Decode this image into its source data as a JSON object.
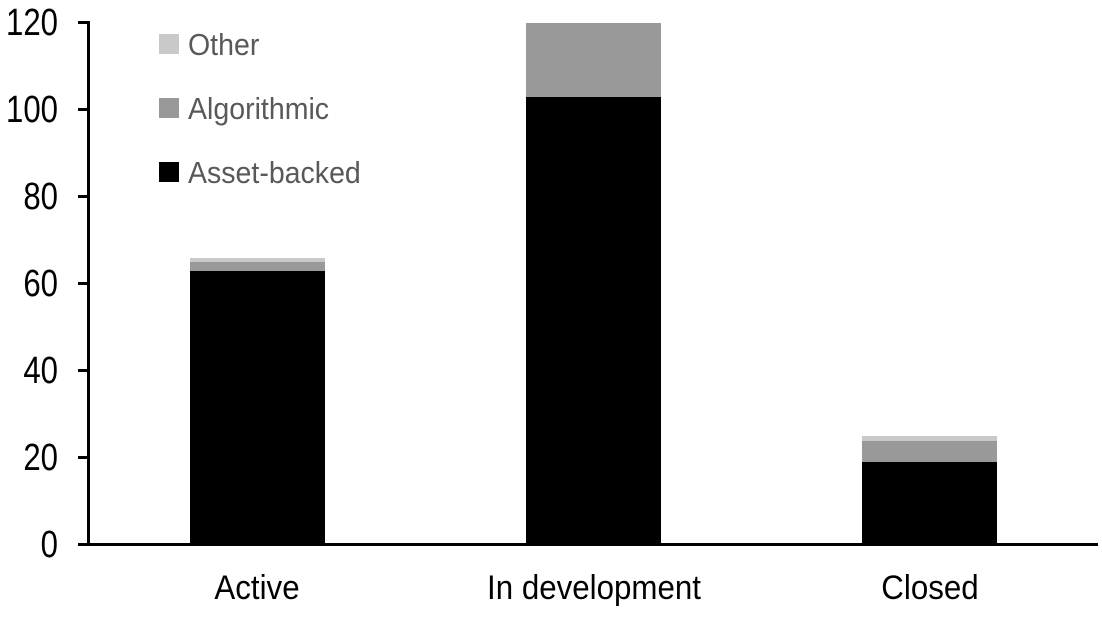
{
  "chart_data": {
    "type": "bar",
    "stacked": true,
    "title": "",
    "xlabel": "",
    "ylabel": "",
    "categories": [
      "Active",
      "In development",
      "Closed"
    ],
    "series": [
      {
        "name": "Asset-backed",
        "color": "#000000",
        "values": [
          63,
          103,
          19
        ]
      },
      {
        "name": "Algorithmic",
        "color": "#999999",
        "values": [
          2,
          17,
          5
        ]
      },
      {
        "name": "Other",
        "color": "#c9c9c9",
        "values": [
          1,
          0,
          1
        ]
      }
    ],
    "totals": [
      66,
      120,
      25
    ],
    "y_ticks": [
      0,
      20,
      40,
      60,
      80,
      100,
      120
    ],
    "ylim": [
      0,
      120
    ],
    "grid": false,
    "legend_position": "top-left",
    "legend_order": [
      "Other",
      "Algorithmic",
      "Asset-backed"
    ],
    "colors": {
      "axis": "#000000",
      "tick_label": "#000000",
      "category_label": "#000000",
      "legend_text": "#595959",
      "background": "#ffffff"
    }
  }
}
